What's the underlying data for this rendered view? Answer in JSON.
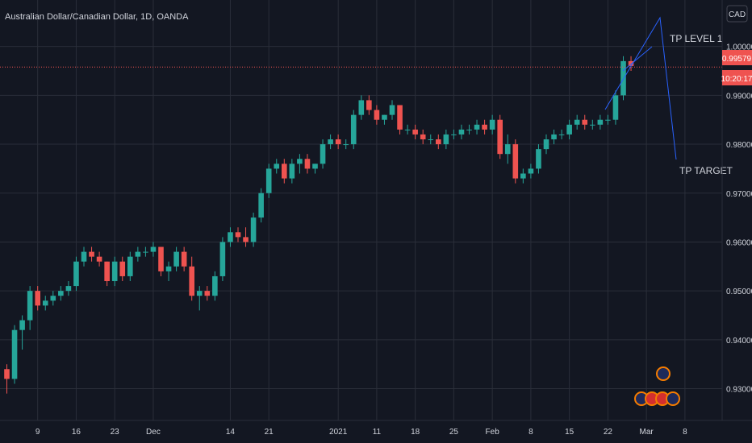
{
  "header": {
    "symbol": "Australian Dollar/Canadian Dollar, 1D, OANDA",
    "currency": "CAD"
  },
  "last_price": {
    "value": "0.99579",
    "countdown": "10:20:17"
  },
  "annotations": {
    "tp1": "TP LEVEL 1",
    "tp_target": "TP TARGET"
  },
  "colors": {
    "bg": "#131722",
    "grid": "#2a2e39",
    "up": "#26a69a",
    "down": "#ef5350",
    "text": "#d1d4dc",
    "drawing": "#2962ff"
  },
  "chart_data": {
    "type": "candlestick",
    "title": "Australian Dollar/Canadian Dollar, 1D, OANDA",
    "ylim": [
      0.9235,
      1.0095
    ],
    "y_ticks": [
      0.93,
      0.94,
      0.95,
      0.96,
      0.97,
      0.98,
      0.99,
      1.0
    ],
    "y_tick_labels": [
      "0.93000",
      "0.94000",
      "0.95000",
      "0.96000",
      "0.97000",
      "0.98000",
      "0.99000",
      "1.00000"
    ],
    "x_ticks": [
      {
        "index": -1.5,
        "label": "ov"
      },
      {
        "index": 4,
        "label": "9"
      },
      {
        "index": 9,
        "label": "16"
      },
      {
        "index": 14,
        "label": "23"
      },
      {
        "index": 19,
        "label": "Dec"
      },
      {
        "index": 29,
        "label": "14"
      },
      {
        "index": 34,
        "label": "21"
      },
      {
        "index": 43,
        "label": "2021"
      },
      {
        "index": 48,
        "label": "11"
      },
      {
        "index": 53,
        "label": "18"
      },
      {
        "index": 58,
        "label": "25"
      },
      {
        "index": 63,
        "label": "Feb"
      },
      {
        "index": 68,
        "label": "8"
      },
      {
        "index": 73,
        "label": "15"
      },
      {
        "index": 78,
        "label": "22"
      },
      {
        "index": 83,
        "label": "Mar"
      },
      {
        "index": 88,
        "label": "8"
      }
    ],
    "candles": [
      [
        0.934,
        0.935,
        0.929,
        0.932
      ],
      [
        0.932,
        0.943,
        0.931,
        0.942
      ],
      [
        0.942,
        0.945,
        0.938,
        0.944
      ],
      [
        0.944,
        0.951,
        0.942,
        0.95
      ],
      [
        0.95,
        0.951,
        0.946,
        0.947
      ],
      [
        0.947,
        0.949,
        0.946,
        0.948
      ],
      [
        0.948,
        0.95,
        0.947,
        0.949
      ],
      [
        0.949,
        0.951,
        0.948,
        0.95
      ],
      [
        0.95,
        0.952,
        0.949,
        0.951
      ],
      [
        0.951,
        0.957,
        0.95,
        0.956
      ],
      [
        0.956,
        0.959,
        0.955,
        0.958
      ],
      [
        0.958,
        0.959,
        0.956,
        0.957
      ],
      [
        0.957,
        0.958,
        0.955,
        0.956
      ],
      [
        0.956,
        0.956,
        0.951,
        0.952
      ],
      [
        0.952,
        0.957,
        0.951,
        0.956
      ],
      [
        0.956,
        0.957,
        0.952,
        0.953
      ],
      [
        0.953,
        0.958,
        0.952,
        0.957
      ],
      [
        0.957,
        0.959,
        0.956,
        0.958
      ],
      [
        0.958,
        0.959,
        0.957,
        0.958
      ],
      [
        0.958,
        0.96,
        0.957,
        0.959
      ],
      [
        0.959,
        0.959,
        0.953,
        0.954
      ],
      [
        0.954,
        0.956,
        0.952,
        0.955
      ],
      [
        0.955,
        0.959,
        0.954,
        0.958
      ],
      [
        0.958,
        0.959,
        0.954,
        0.955
      ],
      [
        0.955,
        0.957,
        0.948,
        0.949
      ],
      [
        0.949,
        0.951,
        0.946,
        0.95
      ],
      [
        0.95,
        0.951,
        0.948,
        0.949
      ],
      [
        0.949,
        0.954,
        0.948,
        0.953
      ],
      [
        0.953,
        0.961,
        0.952,
        0.96
      ],
      [
        0.96,
        0.963,
        0.959,
        0.962
      ],
      [
        0.962,
        0.963,
        0.96,
        0.961
      ],
      [
        0.961,
        0.963,
        0.959,
        0.96
      ],
      [
        0.96,
        0.966,
        0.959,
        0.965
      ],
      [
        0.965,
        0.971,
        0.964,
        0.97
      ],
      [
        0.97,
        0.976,
        0.969,
        0.975
      ],
      [
        0.975,
        0.977,
        0.974,
        0.976
      ],
      [
        0.976,
        0.977,
        0.972,
        0.973
      ],
      [
        0.973,
        0.977,
        0.972,
        0.976
      ],
      [
        0.976,
        0.978,
        0.974,
        0.977
      ],
      [
        0.977,
        0.978,
        0.974,
        0.975
      ],
      [
        0.975,
        0.976,
        0.974,
        0.976
      ],
      [
        0.976,
        0.981,
        0.975,
        0.98
      ],
      [
        0.98,
        0.982,
        0.979,
        0.981
      ],
      [
        0.981,
        0.982,
        0.979,
        0.98
      ],
      [
        0.98,
        0.981,
        0.979,
        0.98
      ],
      [
        0.98,
        0.987,
        0.979,
        0.986
      ],
      [
        0.986,
        0.99,
        0.985,
        0.989
      ],
      [
        0.989,
        0.99,
        0.986,
        0.987
      ],
      [
        0.987,
        0.988,
        0.984,
        0.985
      ],
      [
        0.985,
        0.986,
        0.984,
        0.986
      ],
      [
        0.986,
        0.989,
        0.985,
        0.988
      ],
      [
        0.988,
        0.988,
        0.982,
        0.983
      ],
      [
        0.983,
        0.984,
        0.982,
        0.983
      ],
      [
        0.983,
        0.984,
        0.981,
        0.982
      ],
      [
        0.982,
        0.983,
        0.98,
        0.981
      ],
      [
        0.981,
        0.982,
        0.98,
        0.981
      ],
      [
        0.981,
        0.982,
        0.979,
        0.98
      ],
      [
        0.98,
        0.983,
        0.979,
        0.982
      ],
      [
        0.982,
        0.983,
        0.981,
        0.982
      ],
      [
        0.982,
        0.984,
        0.981,
        0.983
      ],
      [
        0.983,
        0.984,
        0.982,
        0.983
      ],
      [
        0.983,
        0.985,
        0.982,
        0.984
      ],
      [
        0.984,
        0.985,
        0.982,
        0.983
      ],
      [
        0.983,
        0.986,
        0.982,
        0.985
      ],
      [
        0.985,
        0.986,
        0.977,
        0.978
      ],
      [
        0.978,
        0.982,
        0.976,
        0.98
      ],
      [
        0.98,
        0.981,
        0.972,
        0.973
      ],
      [
        0.973,
        0.975,
        0.972,
        0.974
      ],
      [
        0.974,
        0.976,
        0.973,
        0.975
      ],
      [
        0.975,
        0.98,
        0.974,
        0.979
      ],
      [
        0.979,
        0.982,
        0.978,
        0.981
      ],
      [
        0.981,
        0.983,
        0.98,
        0.982
      ],
      [
        0.982,
        0.983,
        0.981,
        0.982
      ],
      [
        0.982,
        0.985,
        0.981,
        0.984
      ],
      [
        0.984,
        0.986,
        0.983,
        0.985
      ],
      [
        0.985,
        0.986,
        0.983,
        0.984
      ],
      [
        0.984,
        0.985,
        0.983,
        0.984
      ],
      [
        0.984,
        0.986,
        0.983,
        0.985
      ],
      [
        0.985,
        0.986,
        0.984,
        0.985
      ],
      [
        0.985,
        0.991,
        0.984,
        0.99
      ],
      [
        0.99,
        0.998,
        0.989,
        0.997
      ],
      [
        0.997,
        0.998,
        0.995,
        0.996
      ]
    ]
  }
}
